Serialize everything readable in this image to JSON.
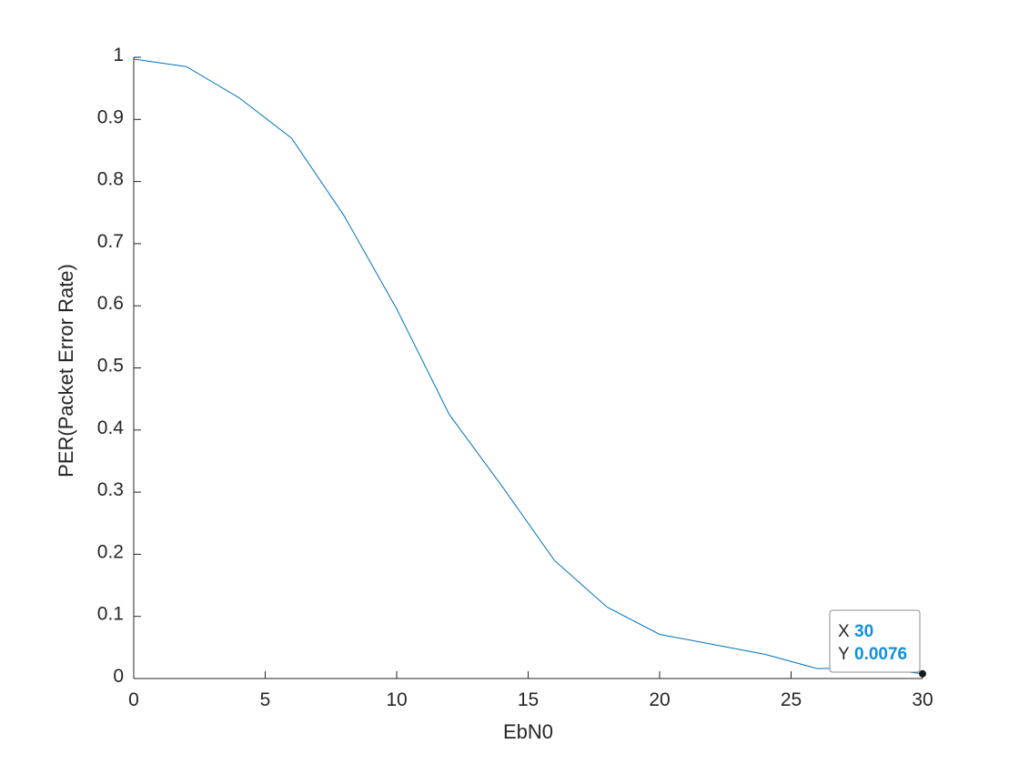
{
  "chart_data": {
    "type": "line",
    "xlabel": "EbN0",
    "ylabel": "PER(Packet Error Rate)",
    "xlim": [
      0,
      30
    ],
    "ylim": [
      0,
      1
    ],
    "xticks": [
      "0",
      "5",
      "10",
      "15",
      "20",
      "25",
      "30"
    ],
    "yticks": [
      "0",
      "0.1",
      "0.2",
      "0.3",
      "0.4",
      "0.5",
      "0.6",
      "0.7",
      "0.8",
      "0.9",
      "1"
    ],
    "grid": false,
    "series": [
      {
        "color": "#0072BD",
        "x": [
          0,
          2,
          4,
          6,
          8,
          10,
          12,
          14,
          16,
          18,
          20,
          22,
          24,
          26,
          28,
          30
        ],
        "y": [
          0.997,
          0.985,
          0.935,
          0.87,
          0.745,
          0.595,
          0.425,
          0.31,
          0.19,
          0.115,
          0.071,
          0.055,
          0.039,
          0.016,
          0.018,
          0.0076
        ]
      }
    ],
    "datatip": {
      "x_label": "X",
      "y_label": "Y",
      "x_value": "30",
      "y_value": "0.0076",
      "x": 30,
      "y": 0.0076
    }
  }
}
